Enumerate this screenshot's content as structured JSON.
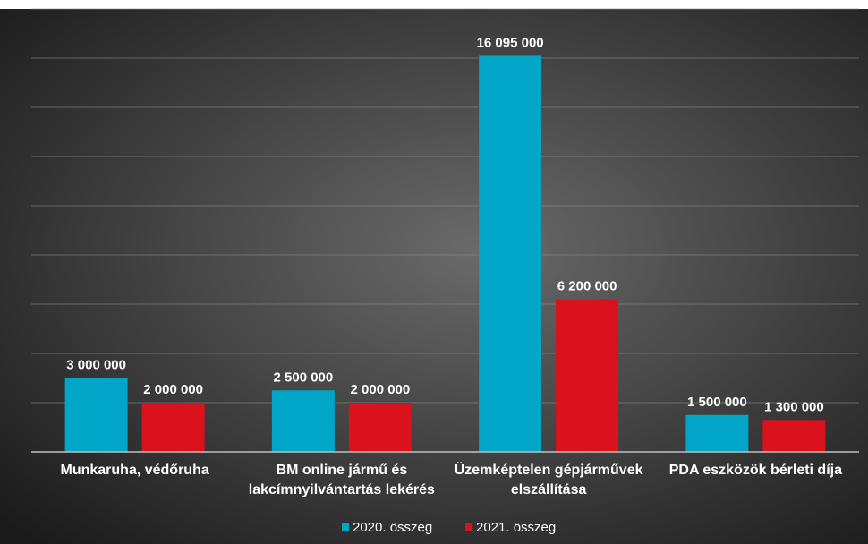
{
  "chart_data": {
    "type": "bar",
    "categories": [
      [
        "Munkaruha, védőruha"
      ],
      [
        "BM online jármű és",
        "lakcímnyilvántartás lekérés"
      ],
      [
        "Üzemképtelen gépjárművek",
        "elszállítása"
      ],
      [
        "PDA eszközök bérleti díja"
      ]
    ],
    "series": [
      {
        "name": "2020. összeg",
        "color": "#00a5c8",
        "values": [
          3000000,
          2500000,
          16095000,
          1500000
        ],
        "labels": [
          "3 000 000",
          "2 500 000",
          "16 095 000",
          "1 500 000"
        ]
      },
      {
        "name": "2021. összeg",
        "color": "#d9121d",
        "values": [
          2000000,
          2000000,
          6200000,
          1300000
        ],
        "labels": [
          "2 000 000",
          "2 000 000",
          "6 200 000",
          "1 300 000"
        ]
      }
    ],
    "ylim": [
      0,
      18000000
    ],
    "gridlines": [
      2000000,
      4000000,
      6000000,
      8000000,
      10000000,
      12000000,
      14000000,
      16000000,
      18000000
    ],
    "grid": true,
    "legend_position": "bottom",
    "background": "#2f2f2f"
  }
}
